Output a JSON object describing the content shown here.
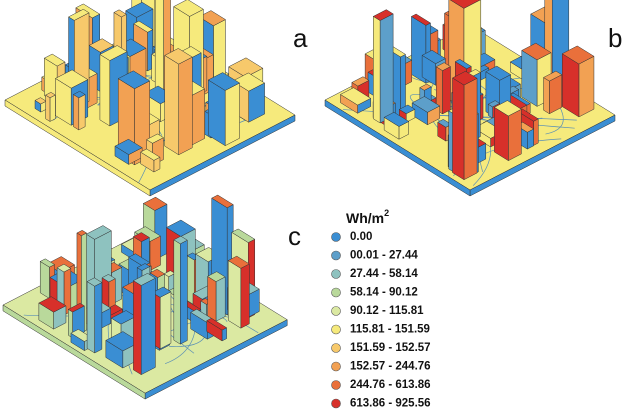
{
  "panels": [
    {
      "label": "a"
    },
    {
      "label": "b"
    },
    {
      "label": "c"
    }
  ],
  "legend": {
    "title": "Wh/m",
    "title_sup": "2",
    "items": [
      {
        "label": "0.00",
        "color": "#3a8ed3"
      },
      {
        "label": "00.01 - 27.44",
        "color": "#5d9fca"
      },
      {
        "label": "27.44 - 58.14",
        "color": "#8ec2bf"
      },
      {
        "label": "58.14 - 90.12",
        "color": "#b9d99b"
      },
      {
        "label": "90.12 - 115.81",
        "color": "#dbe9a2"
      },
      {
        "label": "115.81 - 151.59",
        "color": "#f6ea7c"
      },
      {
        "label": "151.59 - 152.57",
        "color": "#f7c96b"
      },
      {
        "label": "152.57 - 244.76",
        "color": "#f2a153"
      },
      {
        "label": "244.76 - 613.86",
        "color": "#e9703b"
      },
      {
        "label": "613.86 - 925.56",
        "color": "#d7302a"
      }
    ]
  }
}
